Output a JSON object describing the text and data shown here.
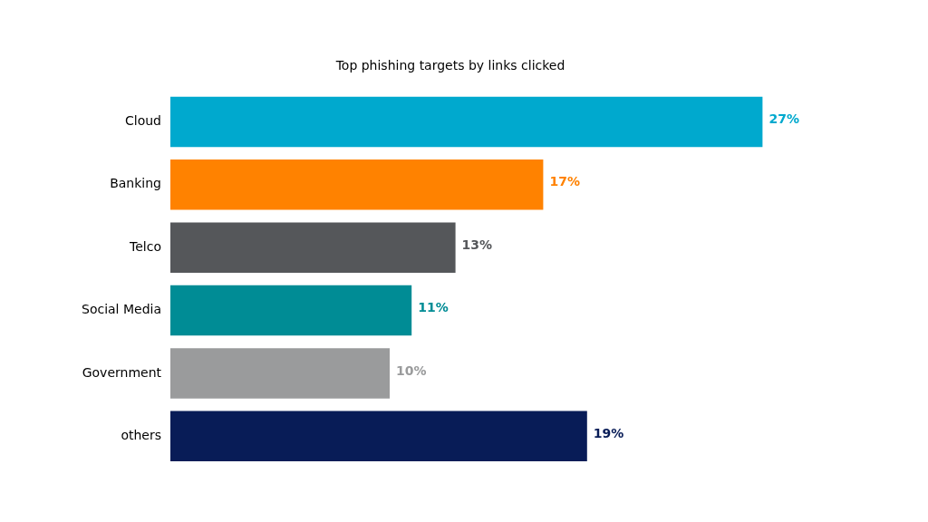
{
  "chart_data": {
    "type": "bar",
    "title": "Top phishing targets by links clicked",
    "orientation": "horizontal",
    "categories": [
      "Cloud",
      "Banking",
      "Telco",
      "Social Media",
      "Government",
      "others"
    ],
    "values": [
      27,
      17,
      13,
      11,
      10,
      19
    ],
    "colors": [
      "#00a9ce",
      "#ff8200",
      "#55575a",
      "#008c95",
      "#9a9b9c",
      "#081c57"
    ],
    "value_labels": [
      "27%",
      "17%",
      "13%",
      "11%",
      "10%",
      "19%"
    ],
    "grid": false,
    "legend": false
  }
}
